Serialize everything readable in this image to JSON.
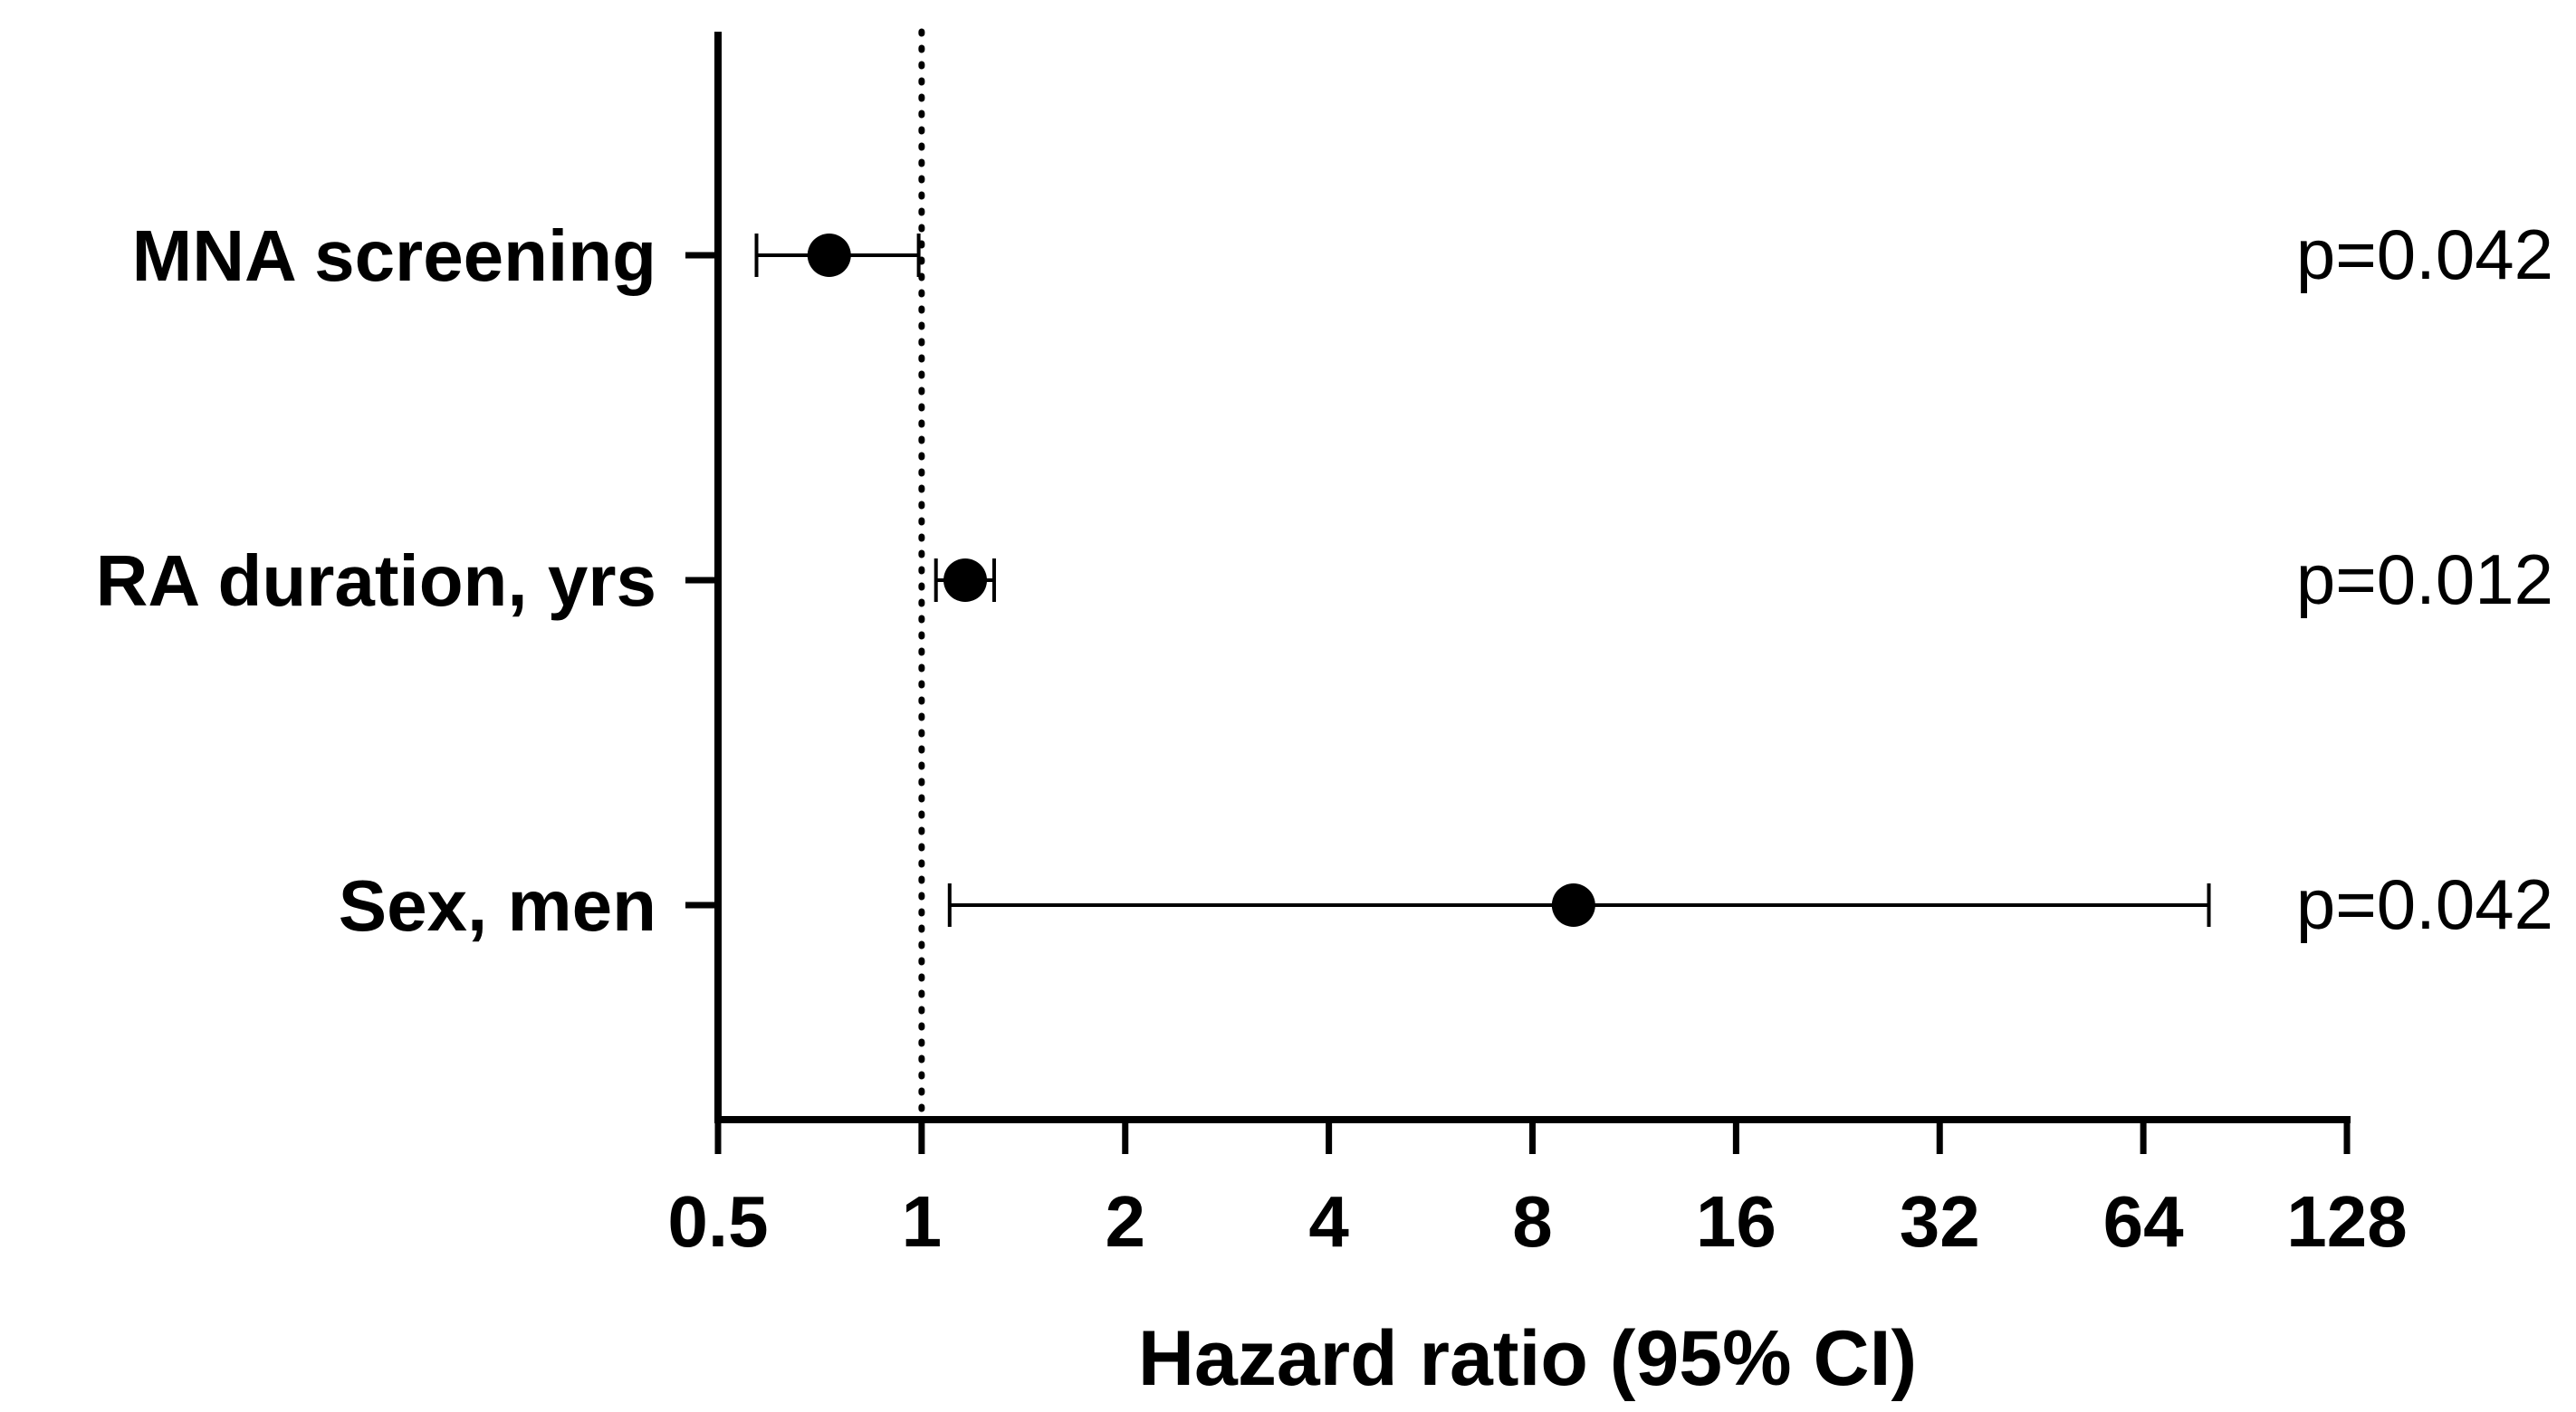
{
  "chart_data": {
    "type": "forest",
    "xlabel": "Hazard ratio (95% CI)",
    "xscale": "log2",
    "xlim": [
      0.5,
      128
    ],
    "xticks": [
      0.5,
      1,
      2,
      4,
      8,
      16,
      32,
      64,
      128
    ],
    "xtick_labels": [
      "0.5",
      "1",
      "2",
      "4",
      "8",
      "16",
      "32",
      "64",
      "128"
    ],
    "reference_line": 1,
    "rows": [
      {
        "label": "MNA screening",
        "hr": 0.73,
        "ci_low": 0.57,
        "ci_high": 0.99,
        "p_label": "p=0.042"
      },
      {
        "label": "RA duration, yrs",
        "hr": 1.16,
        "ci_low": 1.05,
        "ci_high": 1.28,
        "p_label": "p=0.012"
      },
      {
        "label": "Sex, men",
        "hr": 9.2,
        "ci_low": 1.1,
        "ci_high": 80,
        "p_label": "p=0.042"
      }
    ]
  },
  "colors": {
    "ink": "#000000",
    "background": "#ffffff"
  }
}
